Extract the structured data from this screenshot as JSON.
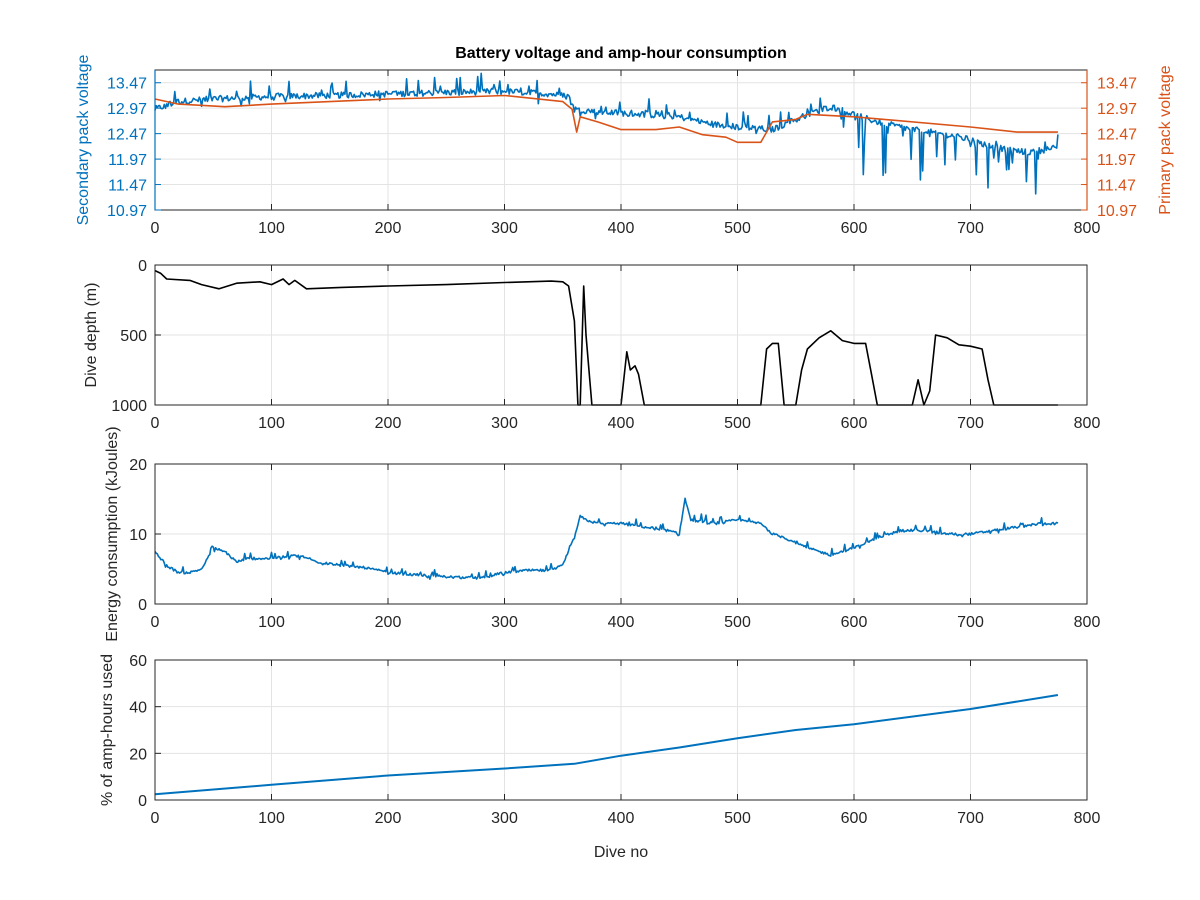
{
  "figure": {
    "title": "Battery voltage and amp-hour consumption",
    "colors": {
      "secondary": "#0072bd",
      "primary": "#d95319",
      "depth": "#000000",
      "axes": "#262626",
      "grid": "#e3e3e3"
    }
  },
  "chart_data": [
    {
      "type": "line",
      "title": "Battery voltage and amp-hour consumption",
      "xlabel": "",
      "ylabel_left": "Secondary pack voltage",
      "ylabel_right": "Primary pack voltage",
      "xlim": [
        0,
        800
      ],
      "ylim": [
        10.97,
        13.72
      ],
      "xticks": [
        "0",
        "100",
        "200",
        "300",
        "400",
        "500",
        "600",
        "700",
        "800"
      ],
      "yticks_left": [
        "10.97",
        "11.47",
        "11.97",
        "12.47",
        "12.97",
        "13.47"
      ],
      "yticks_right": [
        "10.97",
        "11.47",
        "11.97",
        "12.47",
        "12.97",
        "13.47"
      ],
      "grid": true,
      "series": [
        {
          "name": "Secondary pack voltage",
          "axis": "left",
          "color": "#0072bd",
          "noise": 0.35,
          "x": [
            0,
            20,
            50,
            100,
            150,
            200,
            250,
            300,
            340,
            355,
            360,
            380,
            420,
            450,
            480,
            500,
            530,
            560,
            580,
            600,
            620,
            650,
            680,
            700,
            720,
            750,
            775
          ],
          "y": [
            12.95,
            13.1,
            13.15,
            13.2,
            13.22,
            13.25,
            13.28,
            13.3,
            13.25,
            13.2,
            12.95,
            12.9,
            12.85,
            12.8,
            12.65,
            12.6,
            12.55,
            12.85,
            13.0,
            12.85,
            12.7,
            12.55,
            12.45,
            12.35,
            12.2,
            12.1,
            12.2
          ]
        },
        {
          "name": "Primary pack voltage",
          "axis": "right",
          "color": "#d95319",
          "x": [
            0,
            20,
            60,
            100,
            200,
            250,
            300,
            350,
            358,
            362,
            365,
            380,
            400,
            430,
            450,
            470,
            490,
            500,
            520,
            525,
            530,
            550,
            560,
            600,
            700,
            740,
            775
          ],
          "y": [
            13.15,
            13.05,
            13.0,
            13.05,
            13.15,
            13.18,
            13.22,
            13.1,
            12.95,
            12.5,
            12.8,
            12.7,
            12.55,
            12.55,
            12.6,
            12.45,
            12.4,
            12.3,
            12.3,
            12.5,
            12.7,
            12.75,
            12.85,
            12.8,
            12.6,
            12.5,
            12.5
          ]
        }
      ]
    },
    {
      "type": "line",
      "ylabel": "Dive depth (m)",
      "xlim": [
        0,
        800
      ],
      "ylim": [
        0,
        1000
      ],
      "y_reversed": true,
      "xticks": [
        "0",
        "100",
        "200",
        "300",
        "400",
        "500",
        "600",
        "700",
        "800"
      ],
      "yticks": [
        "0",
        "500",
        "1000"
      ],
      "grid": true,
      "series": [
        {
          "color": "#000000",
          "x": [
            0,
            5,
            10,
            30,
            40,
            55,
            70,
            90,
            100,
            110,
            115,
            120,
            130,
            160,
            200,
            250,
            300,
            340,
            350,
            355,
            360,
            363,
            365,
            368,
            370,
            375,
            400,
            405,
            408,
            412,
            415,
            420,
            430,
            500,
            520,
            525,
            530,
            535,
            540,
            545,
            550,
            555,
            560,
            570,
            580,
            590,
            600,
            610,
            615,
            620,
            640,
            650,
            655,
            660,
            665,
            670,
            680,
            690,
            700,
            710,
            715,
            720,
            760,
            775
          ],
          "y": [
            40,
            60,
            100,
            110,
            140,
            170,
            130,
            120,
            140,
            100,
            140,
            110,
            170,
            160,
            150,
            140,
            125,
            115,
            120,
            150,
            400,
            1000,
            1000,
            150,
            500,
            1000,
            1000,
            620,
            750,
            720,
            780,
            1000,
            1000,
            1000,
            1000,
            600,
            560,
            560,
            1000,
            1000,
            1000,
            750,
            600,
            520,
            470,
            540,
            560,
            560,
            780,
            1000,
            1000,
            1000,
            820,
            1000,
            900,
            500,
            520,
            570,
            580,
            600,
            820,
            1000,
            1000,
            1000
          ]
        }
      ]
    },
    {
      "type": "line",
      "ylabel": "Energy consumption (kJoules)",
      "xlim": [
        0,
        800
      ],
      "ylim": [
        0,
        20
      ],
      "xticks": [
        "0",
        "100",
        "200",
        "300",
        "400",
        "500",
        "600",
        "700",
        "800"
      ],
      "yticks": [
        "0",
        "10",
        "20"
      ],
      "grid": true,
      "series": [
        {
          "color": "#0072bd",
          "noise": 1.0,
          "x": [
            0,
            10,
            20,
            30,
            40,
            50,
            60,
            70,
            80,
            100,
            120,
            130,
            140,
            160,
            180,
            200,
            220,
            240,
            260,
            280,
            300,
            320,
            340,
            350,
            360,
            365,
            370,
            380,
            400,
            420,
            440,
            450,
            455,
            460,
            480,
            500,
            520,
            530,
            540,
            560,
            580,
            600,
            620,
            640,
            660,
            680,
            700,
            720,
            740,
            760,
            775
          ],
          "y": [
            7.5,
            5.5,
            4.5,
            4.5,
            5.0,
            8.0,
            7.5,
            6.0,
            6.5,
            6.5,
            7.0,
            6.5,
            6.0,
            5.5,
            5.2,
            4.5,
            4.2,
            4.0,
            3.8,
            3.7,
            4.5,
            4.8,
            4.8,
            5.5,
            9.5,
            12.5,
            12.0,
            11.5,
            11.5,
            11.0,
            10.5,
            10.0,
            15.0,
            12.0,
            11.5,
            12.0,
            11.5,
            10.0,
            9.5,
            8.0,
            7.0,
            8.0,
            9.5,
            10.5,
            10.5,
            10.0,
            10.0,
            10.5,
            11.0,
            11.5,
            11.5
          ]
        }
      ]
    },
    {
      "type": "line",
      "xlabel": "Dive no",
      "ylabel": "% of amp-hours used",
      "xlim": [
        0,
        800
      ],
      "ylim": [
        0,
        60
      ],
      "xticks": [
        "0",
        "100",
        "200",
        "300",
        "400",
        "500",
        "600",
        "700",
        "800"
      ],
      "yticks": [
        "0",
        "20",
        "40",
        "60"
      ],
      "grid": true,
      "series": [
        {
          "color": "#0072bd",
          "x": [
            0,
            100,
            200,
            300,
            360,
            400,
            450,
            500,
            550,
            600,
            700,
            775
          ],
          "y": [
            2.5,
            6.5,
            10.5,
            13.5,
            15.5,
            19.0,
            22.5,
            26.5,
            30.0,
            32.5,
            39.0,
            45.0
          ]
        }
      ]
    }
  ]
}
